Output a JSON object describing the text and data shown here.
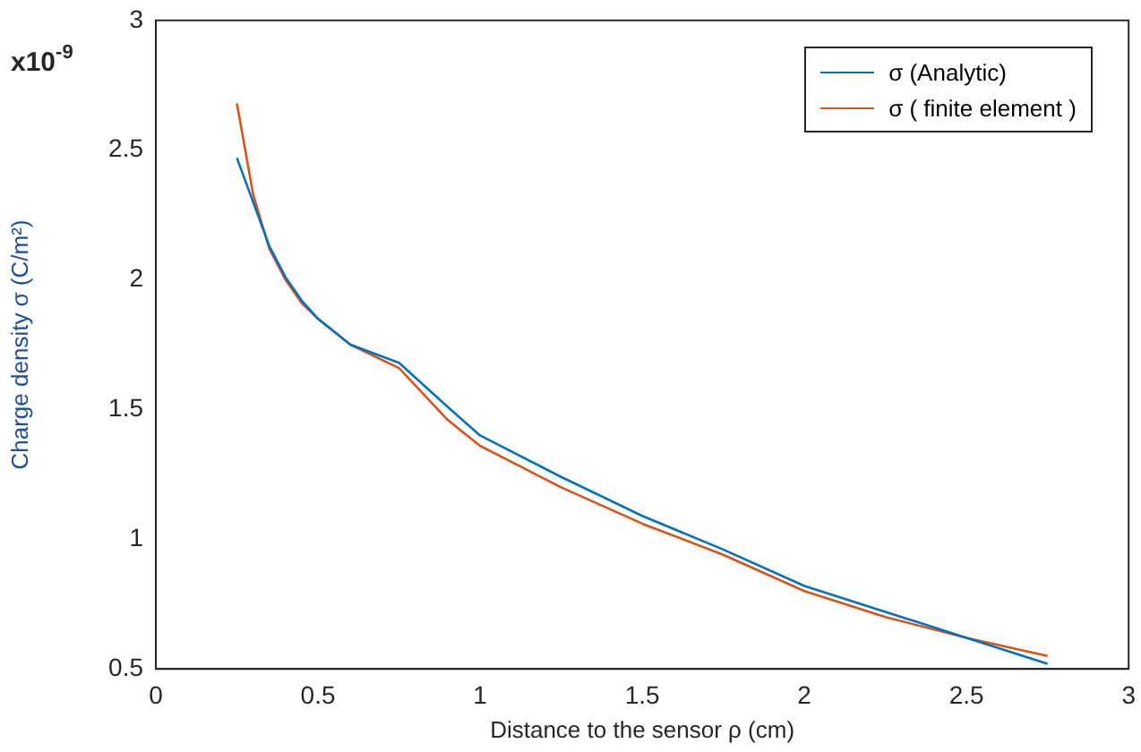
{
  "chart_data": {
    "type": "line",
    "xlabel": "Distance to the sensor ρ (cm)",
    "ylabel": "Charge density σ (C/m²)",
    "annotations": [
      "x10$^{-9}$"
    ],
    "xlim": [
      0,
      3
    ],
    "xticks": [
      0,
      0.5,
      1,
      1.5,
      2,
      2.5,
      3
    ],
    "ylim": [
      0.5,
      3
    ],
    "yticks": [
      0.5,
      1,
      1.5,
      2,
      2.5,
      3
    ],
    "grid": false,
    "legend": "top right",
    "marker": "none",
    "line_style": "solid",
    "series": [
      {
        "name": "σ (Analytic)",
        "color": "#0072bd",
        "x": [
          0.25,
          0.3,
          0.35,
          0.4,
          0.45,
          0.5,
          0.6,
          0.75,
          0.9,
          1.0,
          1.25,
          1.5,
          1.75,
          2.0,
          2.25,
          2.5,
          2.75
        ],
        "values": [
          2.47,
          2.3,
          2.13,
          2.01,
          1.92,
          1.85,
          1.75,
          1.68,
          1.51,
          1.4,
          1.24,
          1.09,
          0.96,
          0.82,
          0.72,
          0.62,
          0.52
        ]
      },
      {
        "name": "σ ( finite element )",
        "color": "#d95319",
        "x": [
          0.25,
          0.3,
          0.35,
          0.4,
          0.45,
          0.5,
          0.6,
          0.75,
          0.9,
          1.0,
          1.25,
          1.5,
          1.75,
          2.0,
          2.25,
          2.5,
          2.75
        ],
        "values": [
          2.68,
          2.33,
          2.12,
          2.0,
          1.91,
          1.85,
          1.75,
          1.66,
          1.46,
          1.36,
          1.2,
          1.06,
          0.94,
          0.8,
          0.7,
          0.62,
          0.55
        ]
      }
    ]
  }
}
